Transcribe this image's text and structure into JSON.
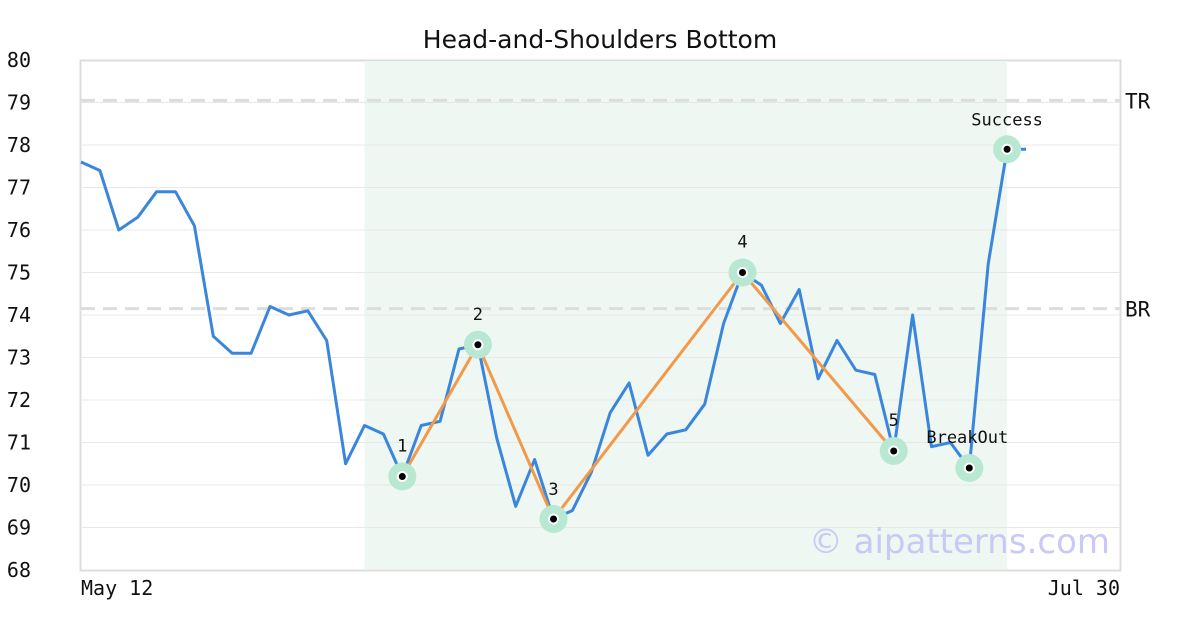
{
  "chart_data": {
    "type": "line",
    "title": "Head-and-Shoulders Bottom",
    "xlabel": "",
    "ylabel": "",
    "ylim": [
      68,
      80
    ],
    "yticks": [
      68,
      69,
      70,
      71,
      72,
      73,
      74,
      75,
      76,
      77,
      78,
      79,
      80
    ],
    "xtick_labels": [
      {
        "index": 0,
        "label": "May 12"
      },
      {
        "index": 55,
        "label": "Jul 30"
      }
    ],
    "grid": true,
    "series": [
      {
        "values": [
          77.6,
          77.4,
          76.0,
          76.3,
          76.9,
          76.9,
          76.1,
          73.5,
          73.1,
          73.1,
          74.2,
          74.0,
          74.1,
          73.4,
          70.5,
          71.4,
          71.2,
          70.2,
          71.4,
          71.5,
          73.2,
          73.3,
          71.1,
          69.5,
          70.6,
          69.2,
          69.4,
          70.3,
          71.7,
          72.4,
          70.7,
          71.2,
          71.3,
          71.9,
          73.8,
          75.0,
          74.7,
          73.8,
          74.6,
          72.5,
          73.4,
          72.7,
          72.6,
          70.8,
          74.0,
          70.9,
          71.0,
          70.4,
          75.2,
          77.9,
          77.9
        ]
      }
    ],
    "pattern": {
      "points": [
        {
          "index": 17,
          "value": 70.2,
          "label": "1"
        },
        {
          "index": 21,
          "value": 73.3,
          "label": "2"
        },
        {
          "index": 25,
          "value": 69.2,
          "label": "3"
        },
        {
          "index": 35,
          "value": 75.0,
          "label": "4"
        },
        {
          "index": 43,
          "value": 70.8,
          "label": "5"
        }
      ],
      "breakout": {
        "index": 47,
        "value": 70.4,
        "label": "BreakOut"
      },
      "success": {
        "index": 49,
        "value": 77.9,
        "label": "Success"
      },
      "region_start_index": 15,
      "region_end_index": 49
    },
    "levels": [
      {
        "label": "TR",
        "value": 79.05
      },
      {
        "label": "BR",
        "value": 74.15
      }
    ],
    "colors": {
      "price_line": "#3b86dd",
      "pattern_line": "#f2994a",
      "marker_halo": "#b9e8d2",
      "shaded_region": "#eef7f2",
      "level_line": "#dddddd",
      "grid": "#e8e8e8",
      "frame": "#dddddd"
    }
  },
  "watermark": "© aipatterns.com"
}
